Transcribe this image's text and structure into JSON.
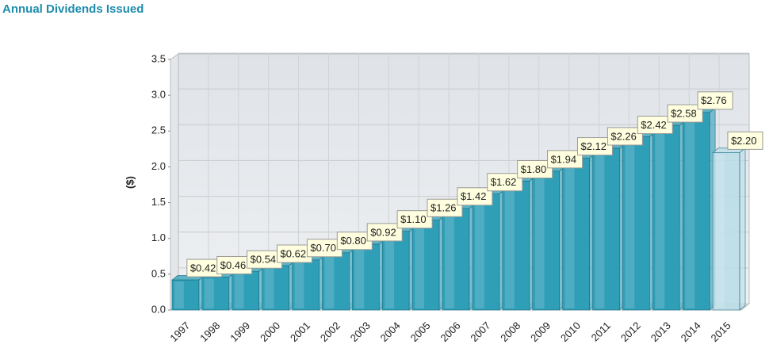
{
  "chart_data": {
    "type": "bar3d",
    "title": "Annual Dividends Issued",
    "ylabel": "($)",
    "categories": [
      "1997",
      "1998",
      "1999",
      "2000",
      "2001",
      "2002",
      "2003",
      "2004",
      "2005",
      "2006",
      "2007",
      "2008",
      "2009",
      "2010",
      "2011",
      "2012",
      "2013",
      "2014",
      "2015"
    ],
    "values": [
      0.42,
      0.46,
      0.54,
      0.62,
      0.7,
      0.8,
      0.92,
      1.1,
      1.26,
      1.42,
      1.62,
      1.8,
      1.94,
      2.12,
      2.26,
      2.42,
      2.58,
      2.76,
      2.2
    ],
    "value_labels": [
      "$0.42",
      "$0.46",
      "$0.54",
      "$0.62",
      "$0.70",
      "$0.80",
      "$0.92",
      "$1.10",
      "$1.26",
      "$1.42",
      "$1.62",
      "$1.80",
      "$1.94",
      "$2.12",
      "$2.26",
      "$2.42",
      "$2.58",
      "$2.76",
      "$2.20"
    ],
    "colors": [
      "#2f9fb8",
      "#2f9fb8",
      "#2f9fb8",
      "#2f9fb8",
      "#2f9fb8",
      "#2f9fb8",
      "#2f9fb8",
      "#2f9fb8",
      "#2f9fb8",
      "#2f9fb8",
      "#2f9fb8",
      "#2f9fb8",
      "#2f9fb8",
      "#2f9fb8",
      "#2f9fb8",
      "#2f9fb8",
      "#2f9fb8",
      "#2f9fb8",
      "#b9dde8"
    ],
    "ylim": [
      0,
      3.5
    ],
    "yticks": [
      {
        "value": 0,
        "label": "0.0"
      },
      0.5,
      {
        "value": 1,
        "label": "1.0"
      },
      1.5,
      {
        "value": 2,
        "label": "2.0"
      },
      2.5,
      {
        "value": 3,
        "label": "3.0"
      },
      3.5
    ],
    "grid": true
  }
}
